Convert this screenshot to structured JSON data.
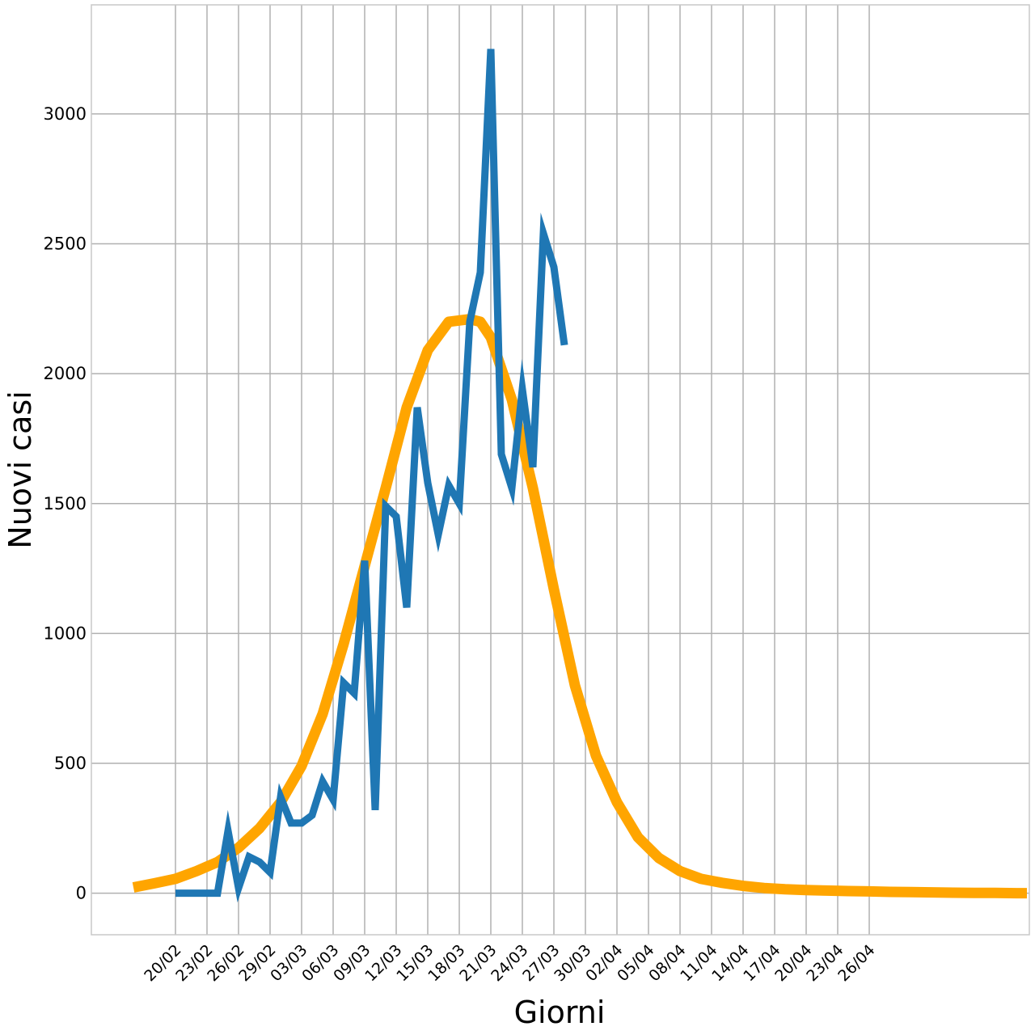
{
  "chart_data": {
    "type": "line",
    "title": "",
    "xlabel": "Giorni",
    "ylabel": "Nuovi casi",
    "ylim": [
      -160,
      3420
    ],
    "yticks": [
      0,
      500,
      1000,
      1500,
      2000,
      2500,
      3000
    ],
    "xticks": [
      "20/02",
      "23/02",
      "26/02",
      "29/02",
      "03/03",
      "06/03",
      "09/03",
      "12/03",
      "15/03",
      "18/03",
      "21/03",
      "24/03",
      "27/03",
      "30/03",
      "02/04",
      "05/04",
      "08/04",
      "11/04",
      "14/04",
      "17/04",
      "20/04",
      "23/04",
      "26/04"
    ],
    "xlim_days": [
      -8,
      81
    ],
    "grid": true,
    "legend": "none",
    "colors": {
      "observed": "#1f77b4",
      "fit": "#ffa500"
    },
    "series": [
      {
        "x_start": "20/02",
        "values": [
          0,
          0,
          0,
          0,
          0,
          240,
          20,
          140,
          120,
          80,
          370,
          270,
          270,
          300,
          430,
          360,
          810,
          770,
          1280,
          320,
          1490,
          1450,
          1100,
          1870,
          1580,
          1380,
          1570,
          1500,
          2200,
          2390,
          3250,
          1690,
          1560,
          1940,
          1640,
          2540,
          2410,
          2110
        ]
      },
      {
        "x": [
          -4,
          -2,
          0,
          2,
          4,
          6,
          8,
          10,
          12,
          14,
          16,
          18,
          20,
          22,
          24,
          26,
          28,
          29,
          30,
          32,
          34,
          36,
          38,
          40,
          42,
          44,
          46,
          48,
          50,
          52,
          54,
          56,
          58,
          60,
          62,
          64,
          66,
          68,
          70,
          72,
          74,
          76,
          78,
          80,
          81
        ],
        "values": [
          22,
          38,
          55,
          85,
          120,
          175,
          250,
          350,
          490,
          690,
          960,
          1260,
          1560,
          1870,
          2090,
          2200,
          2210,
          2200,
          2140,
          1900,
          1560,
          1170,
          800,
          530,
          350,
          215,
          135,
          85,
          55,
          40,
          28,
          20,
          15,
          12,
          10,
          8,
          7,
          5,
          4,
          3,
          2,
          1,
          1,
          0,
          0
        ]
      }
    ]
  }
}
